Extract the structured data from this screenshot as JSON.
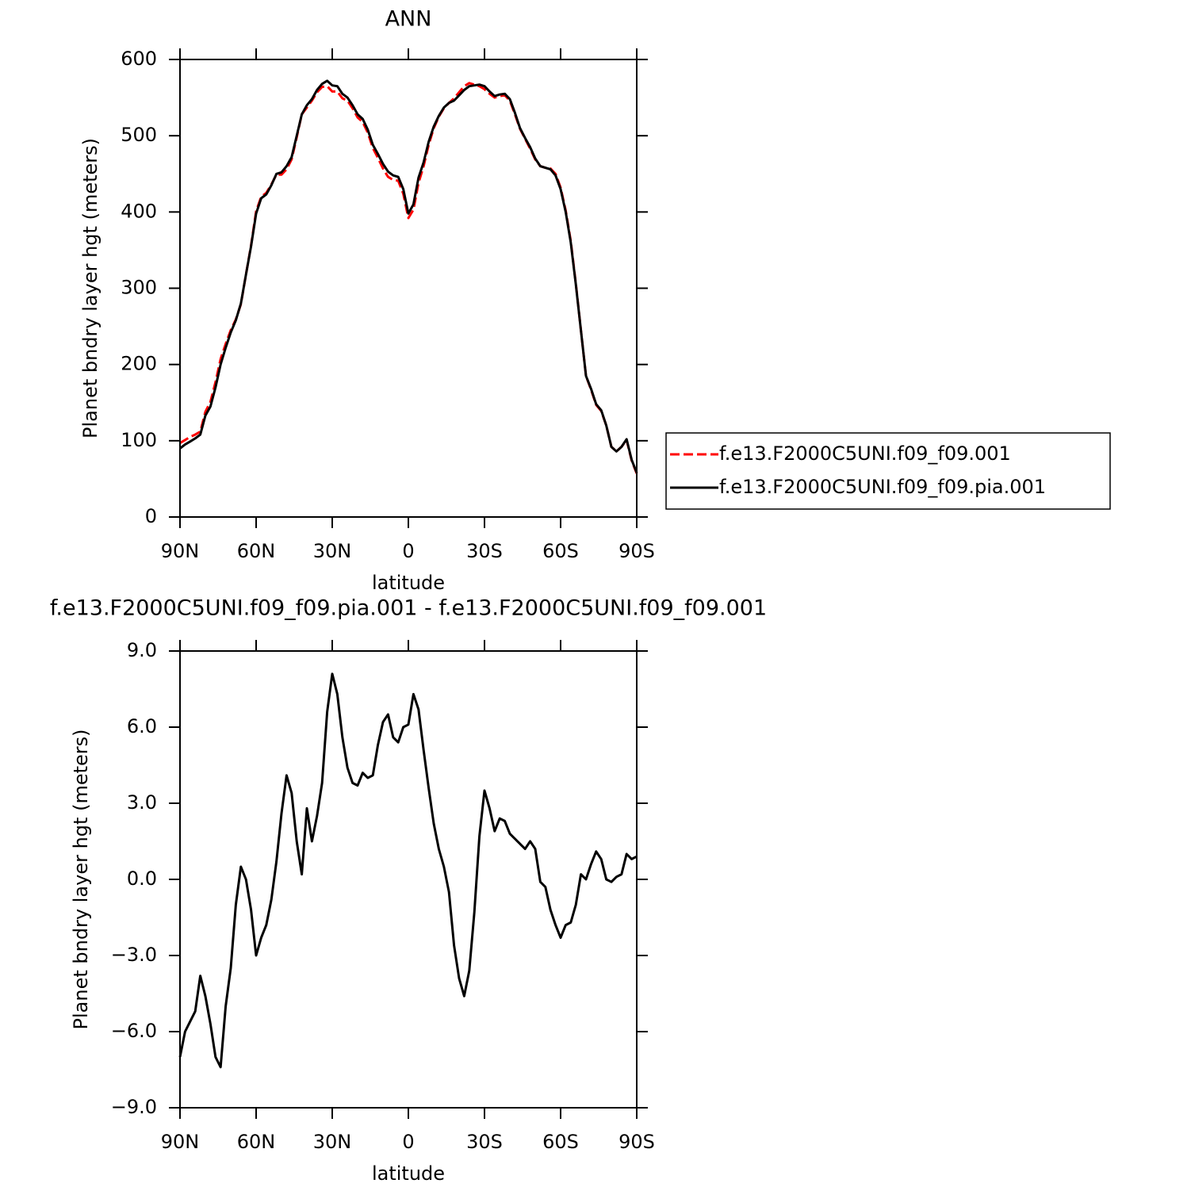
{
  "chart_data": [
    {
      "type": "line",
      "title": "ANN",
      "xlabel": "latitude",
      "ylabel": "Planet bndry layer hgt (meters)",
      "x": [
        90,
        88,
        86,
        84,
        82,
        80,
        78,
        76,
        74,
        72,
        70,
        68,
        66,
        64,
        62,
        60,
        58,
        56,
        54,
        52,
        50,
        48,
        46,
        44,
        42,
        40,
        38,
        36,
        34,
        32,
        30,
        28,
        26,
        24,
        22,
        20,
        18,
        16,
        14,
        12,
        10,
        8,
        6,
        4,
        2,
        0,
        -2,
        -4,
        -6,
        -8,
        -10,
        -12,
        -14,
        -16,
        -18,
        -20,
        -22,
        -24,
        -26,
        -28,
        -30,
        -32,
        -34,
        -36,
        -38,
        -40,
        -42,
        -44,
        -46,
        -48,
        -50,
        -52,
        -54,
        -56,
        -58,
        -60,
        -62,
        -64,
        -66,
        -68,
        -70,
        -72,
        -74,
        -76,
        -78,
        -80,
        -82,
        -84,
        -86,
        -88,
        -90
      ],
      "xlim": [
        90,
        -90
      ],
      "xticks": [
        {
          "value": 90,
          "label": "90N"
        },
        {
          "value": 60,
          "label": "60N"
        },
        {
          "value": 30,
          "label": "30N"
        },
        0,
        {
          "value": -30,
          "label": "30S"
        },
        {
          "value": -60,
          "label": "60S"
        },
        {
          "value": -90,
          "label": "90S"
        }
      ],
      "ylim": [
        0,
        600
      ],
      "yticks": [
        0,
        100,
        200,
        300,
        400,
        500,
        600
      ],
      "legend": "outside right",
      "series": [
        {
          "name": "f.e13.F2000C5UNI.f09_f09.001",
          "color": "#ff0000",
          "linestyle": "dashed",
          "values": [
            97,
            101,
            105,
            108,
            112,
            138,
            151,
            177,
            207,
            227,
            245,
            259,
            279,
            318,
            356,
            401,
            420,
            425,
            436,
            449,
            449,
            456,
            469,
            498,
            528,
            537,
            546,
            557,
            564,
            565,
            558,
            558,
            549,
            546,
            536,
            524,
            518,
            504,
            484,
            471,
            457,
            446,
            442,
            441,
            424,
            392,
            403,
            438,
            460,
            488,
            510,
            525,
            536,
            543,
            549,
            557,
            565,
            569,
            567,
            565,
            561,
            555,
            550,
            552,
            553,
            546,
            528,
            509,
            496,
            483,
            469,
            460,
            458,
            457,
            450,
            432,
            402,
            362,
            306,
            245,
            185,
            167,
            147,
            139,
            120,
            92,
            86,
            92,
            101,
            74,
            57
          ]
        },
        {
          "name": "f.e13.F2000C5UNI.f09_f09.pia.001",
          "color": "#000000",
          "linestyle": "solid",
          "values": [
            90,
            95,
            99,
            103,
            108,
            133,
            145,
            170,
            200,
            222,
            242,
            258,
            280,
            318,
            355,
            398,
            418,
            423,
            435,
            450,
            452,
            460,
            472,
            500,
            528,
            540,
            548,
            560,
            568,
            572,
            566,
            565,
            555,
            550,
            540,
            528,
            522,
            508,
            488,
            476,
            463,
            453,
            448,
            446,
            430,
            398,
            410,
            445,
            465,
            492,
            512,
            526,
            537,
            543,
            546,
            553,
            560,
            565,
            566,
            567,
            565,
            558,
            552,
            554,
            555,
            548,
            530,
            510,
            497,
            485,
            470,
            460,
            458,
            456,
            448,
            430,
            400,
            360,
            305,
            245,
            185,
            168,
            148,
            140,
            120,
            92,
            86,
            92,
            102,
            75,
            58
          ]
        }
      ]
    },
    {
      "type": "line",
      "title": "f.e13.F2000C5UNI.f09_f09.pia.001 - f.e13.F2000C5UNI.f09_f09.001",
      "xlabel": "latitude",
      "ylabel": "Planet bndry layer hgt (meters)",
      "x": [
        90,
        88,
        86,
        84,
        82,
        80,
        78,
        76,
        74,
        72,
        70,
        68,
        66,
        64,
        62,
        60,
        58,
        56,
        54,
        52,
        50,
        48,
        46,
        44,
        42,
        40,
        38,
        36,
        34,
        32,
        30,
        28,
        26,
        24,
        22,
        20,
        18,
        16,
        14,
        12,
        10,
        8,
        6,
        4,
        2,
        0,
        -2,
        -4,
        -6,
        -8,
        -10,
        -12,
        -14,
        -16,
        -18,
        -20,
        -22,
        -24,
        -26,
        -28,
        -30,
        -32,
        -34,
        -36,
        -38,
        -40,
        -42,
        -44,
        -46,
        -48,
        -50,
        -52,
        -54,
        -56,
        -58,
        -60,
        -62,
        -64,
        -66,
        -68,
        -70,
        -72,
        -74,
        -76,
        -78,
        -80,
        -82,
        -84,
        -86,
        -88,
        -90
      ],
      "xlim": [
        90,
        -90
      ],
      "xticks": [
        {
          "value": 90,
          "label": "90N"
        },
        {
          "value": 60,
          "label": "60N"
        },
        {
          "value": 30,
          "label": "30N"
        },
        0,
        {
          "value": -30,
          "label": "30S"
        },
        {
          "value": -60,
          "label": "60S"
        },
        {
          "value": -90,
          "label": "90S"
        }
      ],
      "ylim": [
        -9,
        9
      ],
      "yticks": [
        {
          "value": -9,
          "label": "−9.0"
        },
        {
          "value": -6,
          "label": "−6.0"
        },
        {
          "value": -3,
          "label": "−3.0"
        },
        {
          "value": 0,
          "label": "0.0"
        },
        {
          "value": 3,
          "label": "3.0"
        },
        {
          "value": 6,
          "label": "6.0"
        },
        {
          "value": 9,
          "label": "9.0"
        }
      ],
      "series": [
        {
          "color": "#000000",
          "linestyle": "solid",
          "values": [
            -7.0,
            -6.0,
            -5.6,
            -5.2,
            -3.8,
            -4.6,
            -5.7,
            -7.0,
            -7.4,
            -5.0,
            -3.5,
            -1.0,
            0.5,
            0.0,
            -1.2,
            -3.0,
            -2.3,
            -1.8,
            -0.8,
            0.7,
            2.6,
            4.1,
            3.4,
            1.5,
            0.2,
            2.8,
            1.5,
            2.5,
            3.8,
            6.6,
            8.1,
            7.3,
            5.6,
            4.4,
            3.8,
            3.7,
            4.2,
            4.0,
            4.1,
            5.3,
            6.2,
            6.5,
            5.6,
            5.4,
            6.0,
            6.1,
            7.3,
            6.7,
            5.1,
            3.6,
            2.2,
            1.2,
            0.5,
            -0.5,
            -2.6,
            -3.9,
            -4.6,
            -3.6,
            -1.3,
            1.7,
            3.5,
            2.8,
            1.9,
            2.4,
            2.3,
            1.8,
            1.6,
            1.4,
            1.2,
            1.5,
            1.2,
            -0.1,
            -0.3,
            -1.2,
            -1.8,
            -2.3,
            -1.8,
            -1.7,
            -1.0,
            0.2,
            0.0,
            0.6,
            1.1,
            0.8,
            0.0,
            -0.1,
            0.1,
            0.2,
            1.0,
            0.8,
            0.9
          ]
        }
      ]
    }
  ]
}
